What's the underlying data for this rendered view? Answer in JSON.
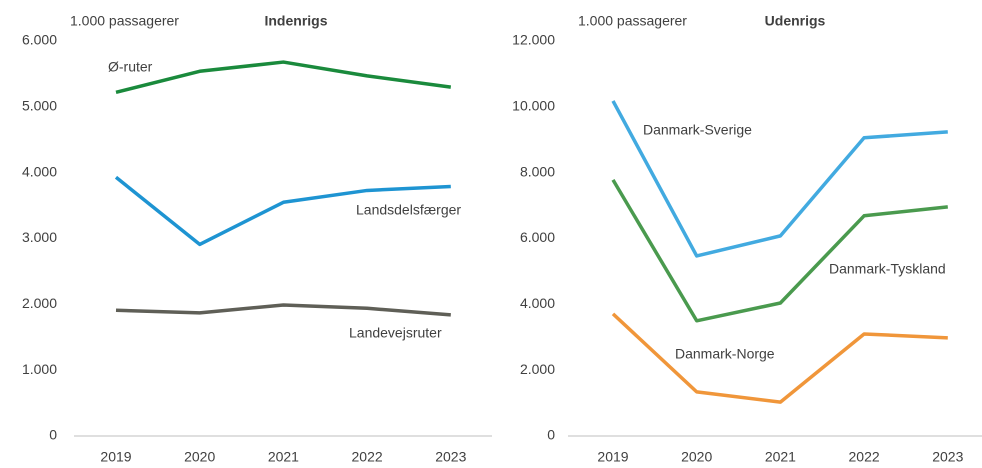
{
  "chart_data": [
    {
      "type": "line",
      "title": "Indenrigs",
      "y_label": "1.000 passagerer",
      "categories": [
        "2019",
        "2020",
        "2021",
        "2022",
        "2023"
      ],
      "series": [
        {
          "name": "Ø-ruter",
          "color": "#1a8a3c",
          "values": [
            5220,
            5540,
            5680,
            5470,
            5300
          ]
        },
        {
          "name": "Landsdelsfærger",
          "color": "#1e94d2",
          "values": [
            3930,
            2910,
            3550,
            3730,
            3790
          ]
        },
        {
          "name": "Landevejsruter",
          "color": "#5f5f57",
          "values": [
            1910,
            1870,
            1990,
            1940,
            1840
          ]
        }
      ],
      "ylim": [
        0,
        6000
      ],
      "yticks": [
        0,
        {
          "value": 1000,
          "label": "1.000"
        },
        {
          "value": 2000,
          "label": "2.000"
        },
        {
          "value": 3000,
          "label": "3.000"
        },
        {
          "value": 4000,
          "label": "4.000"
        },
        {
          "value": 5000,
          "label": "5.000"
        },
        {
          "value": 6000,
          "label": "6.000"
        }
      ],
      "grid": false
    },
    {
      "type": "line",
      "title": "Udenrigs",
      "y_label": "1.000 passagerer",
      "categories": [
        "2019",
        "2020",
        "2021",
        "2022",
        "2023"
      ],
      "series": [
        {
          "name": "Danmark-Sverige",
          "color": "#42aae0",
          "values": [
            10180,
            5470,
            6080,
            9060,
            9240
          ]
        },
        {
          "name": "Danmark-Tyskland",
          "color": "#4a9a4e",
          "values": [
            7780,
            3500,
            4040,
            6690,
            6960
          ]
        },
        {
          "name": "Danmark-Norge",
          "color": "#f0963a",
          "values": [
            3710,
            1340,
            1030,
            3100,
            2980
          ]
        }
      ],
      "ylim": [
        0,
        12000
      ],
      "yticks": [
        0,
        {
          "value": 2000,
          "label": "2.000"
        },
        {
          "value": 4000,
          "label": "4.000"
        },
        {
          "value": 6000,
          "label": "6.000"
        },
        {
          "value": 8000,
          "label": "8.000"
        },
        {
          "value": 10000,
          "label": "10.000"
        },
        {
          "value": 12000,
          "label": "12.000"
        }
      ],
      "grid": false
    }
  ]
}
